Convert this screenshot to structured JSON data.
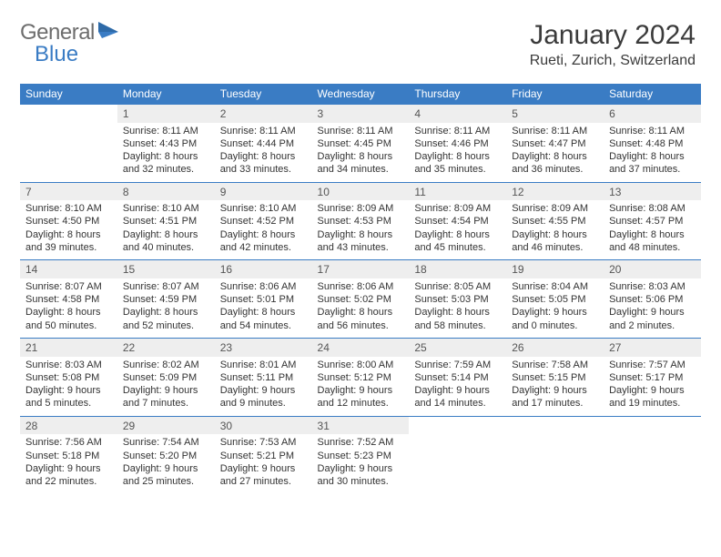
{
  "logo": {
    "text1": "General",
    "text2": "Blue"
  },
  "title": "January 2024",
  "location": "Rueti, Zurich, Switzerland",
  "colors": {
    "header_bg": "#3a7cc4",
    "header_text": "#ffffff",
    "daynum_bg": "#eeeeee",
    "border": "#3a7cc4",
    "text": "#333333",
    "logo_gray": "#6d6d6d",
    "logo_blue": "#3a7cc4"
  },
  "weekdays": [
    "Sunday",
    "Monday",
    "Tuesday",
    "Wednesday",
    "Thursday",
    "Friday",
    "Saturday"
  ],
  "weeks": [
    {
      "nums": [
        "",
        "1",
        "2",
        "3",
        "4",
        "5",
        "6"
      ],
      "cells": [
        {
          "l1": "",
          "l2": "",
          "l3": "",
          "l4": ""
        },
        {
          "l1": "Sunrise: 8:11 AM",
          "l2": "Sunset: 4:43 PM",
          "l3": "Daylight: 8 hours",
          "l4": "and 32 minutes."
        },
        {
          "l1": "Sunrise: 8:11 AM",
          "l2": "Sunset: 4:44 PM",
          "l3": "Daylight: 8 hours",
          "l4": "and 33 minutes."
        },
        {
          "l1": "Sunrise: 8:11 AM",
          "l2": "Sunset: 4:45 PM",
          "l3": "Daylight: 8 hours",
          "l4": "and 34 minutes."
        },
        {
          "l1": "Sunrise: 8:11 AM",
          "l2": "Sunset: 4:46 PM",
          "l3": "Daylight: 8 hours",
          "l4": "and 35 minutes."
        },
        {
          "l1": "Sunrise: 8:11 AM",
          "l2": "Sunset: 4:47 PM",
          "l3": "Daylight: 8 hours",
          "l4": "and 36 minutes."
        },
        {
          "l1": "Sunrise: 8:11 AM",
          "l2": "Sunset: 4:48 PM",
          "l3": "Daylight: 8 hours",
          "l4": "and 37 minutes."
        }
      ]
    },
    {
      "nums": [
        "7",
        "8",
        "9",
        "10",
        "11",
        "12",
        "13"
      ],
      "cells": [
        {
          "l1": "Sunrise: 8:10 AM",
          "l2": "Sunset: 4:50 PM",
          "l3": "Daylight: 8 hours",
          "l4": "and 39 minutes."
        },
        {
          "l1": "Sunrise: 8:10 AM",
          "l2": "Sunset: 4:51 PM",
          "l3": "Daylight: 8 hours",
          "l4": "and 40 minutes."
        },
        {
          "l1": "Sunrise: 8:10 AM",
          "l2": "Sunset: 4:52 PM",
          "l3": "Daylight: 8 hours",
          "l4": "and 42 minutes."
        },
        {
          "l1": "Sunrise: 8:09 AM",
          "l2": "Sunset: 4:53 PM",
          "l3": "Daylight: 8 hours",
          "l4": "and 43 minutes."
        },
        {
          "l1": "Sunrise: 8:09 AM",
          "l2": "Sunset: 4:54 PM",
          "l3": "Daylight: 8 hours",
          "l4": "and 45 minutes."
        },
        {
          "l1": "Sunrise: 8:09 AM",
          "l2": "Sunset: 4:55 PM",
          "l3": "Daylight: 8 hours",
          "l4": "and 46 minutes."
        },
        {
          "l1": "Sunrise: 8:08 AM",
          "l2": "Sunset: 4:57 PM",
          "l3": "Daylight: 8 hours",
          "l4": "and 48 minutes."
        }
      ]
    },
    {
      "nums": [
        "14",
        "15",
        "16",
        "17",
        "18",
        "19",
        "20"
      ],
      "cells": [
        {
          "l1": "Sunrise: 8:07 AM",
          "l2": "Sunset: 4:58 PM",
          "l3": "Daylight: 8 hours",
          "l4": "and 50 minutes."
        },
        {
          "l1": "Sunrise: 8:07 AM",
          "l2": "Sunset: 4:59 PM",
          "l3": "Daylight: 8 hours",
          "l4": "and 52 minutes."
        },
        {
          "l1": "Sunrise: 8:06 AM",
          "l2": "Sunset: 5:01 PM",
          "l3": "Daylight: 8 hours",
          "l4": "and 54 minutes."
        },
        {
          "l1": "Sunrise: 8:06 AM",
          "l2": "Sunset: 5:02 PM",
          "l3": "Daylight: 8 hours",
          "l4": "and 56 minutes."
        },
        {
          "l1": "Sunrise: 8:05 AM",
          "l2": "Sunset: 5:03 PM",
          "l3": "Daylight: 8 hours",
          "l4": "and 58 minutes."
        },
        {
          "l1": "Sunrise: 8:04 AM",
          "l2": "Sunset: 5:05 PM",
          "l3": "Daylight: 9 hours",
          "l4": "and 0 minutes."
        },
        {
          "l1": "Sunrise: 8:03 AM",
          "l2": "Sunset: 5:06 PM",
          "l3": "Daylight: 9 hours",
          "l4": "and 2 minutes."
        }
      ]
    },
    {
      "nums": [
        "21",
        "22",
        "23",
        "24",
        "25",
        "26",
        "27"
      ],
      "cells": [
        {
          "l1": "Sunrise: 8:03 AM",
          "l2": "Sunset: 5:08 PM",
          "l3": "Daylight: 9 hours",
          "l4": "and 5 minutes."
        },
        {
          "l1": "Sunrise: 8:02 AM",
          "l2": "Sunset: 5:09 PM",
          "l3": "Daylight: 9 hours",
          "l4": "and 7 minutes."
        },
        {
          "l1": "Sunrise: 8:01 AM",
          "l2": "Sunset: 5:11 PM",
          "l3": "Daylight: 9 hours",
          "l4": "and 9 minutes."
        },
        {
          "l1": "Sunrise: 8:00 AM",
          "l2": "Sunset: 5:12 PM",
          "l3": "Daylight: 9 hours",
          "l4": "and 12 minutes."
        },
        {
          "l1": "Sunrise: 7:59 AM",
          "l2": "Sunset: 5:14 PM",
          "l3": "Daylight: 9 hours",
          "l4": "and 14 minutes."
        },
        {
          "l1": "Sunrise: 7:58 AM",
          "l2": "Sunset: 5:15 PM",
          "l3": "Daylight: 9 hours",
          "l4": "and 17 minutes."
        },
        {
          "l1": "Sunrise: 7:57 AM",
          "l2": "Sunset: 5:17 PM",
          "l3": "Daylight: 9 hours",
          "l4": "and 19 minutes."
        }
      ]
    },
    {
      "nums": [
        "28",
        "29",
        "30",
        "31",
        "",
        "",
        ""
      ],
      "cells": [
        {
          "l1": "Sunrise: 7:56 AM",
          "l2": "Sunset: 5:18 PM",
          "l3": "Daylight: 9 hours",
          "l4": "and 22 minutes."
        },
        {
          "l1": "Sunrise: 7:54 AM",
          "l2": "Sunset: 5:20 PM",
          "l3": "Daylight: 9 hours",
          "l4": "and 25 minutes."
        },
        {
          "l1": "Sunrise: 7:53 AM",
          "l2": "Sunset: 5:21 PM",
          "l3": "Daylight: 9 hours",
          "l4": "and 27 minutes."
        },
        {
          "l1": "Sunrise: 7:52 AM",
          "l2": "Sunset: 5:23 PM",
          "l3": "Daylight: 9 hours",
          "l4": "and 30 minutes."
        },
        {
          "l1": "",
          "l2": "",
          "l3": "",
          "l4": ""
        },
        {
          "l1": "",
          "l2": "",
          "l3": "",
          "l4": ""
        },
        {
          "l1": "",
          "l2": "",
          "l3": "",
          "l4": ""
        }
      ]
    }
  ]
}
